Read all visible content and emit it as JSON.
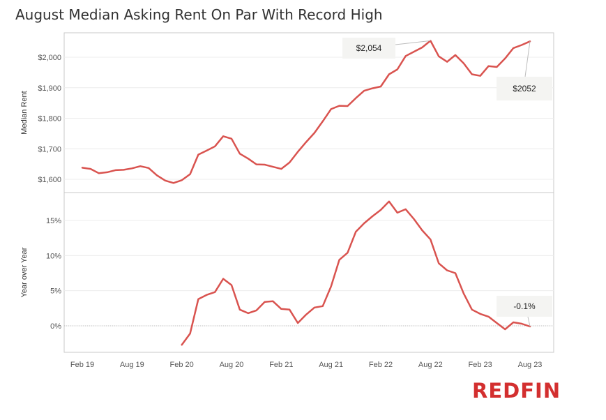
{
  "title": "August Median Asking Rent On Par With Record High",
  "logo": "Redfin",
  "colors": {
    "line": "#d9534f",
    "logo": "#d32f2f",
    "grid": "#ececec",
    "frame": "#c8c8c8",
    "annotation_bg": "#f4f4f2"
  },
  "chart_data": [
    {
      "type": "line",
      "ylabel": "Median Rent",
      "yticks": [
        1600,
        1700,
        1800,
        1900,
        2000
      ],
      "ytick_labels": [
        "$1,600",
        "$1,700",
        "$1,800",
        "$1,900",
        "$2,000"
      ],
      "ylim": [
        1570,
        2080
      ],
      "xticks": [
        "2019-02",
        "2019-08",
        "2020-02",
        "2020-08",
        "2021-02",
        "2021-08",
        "2022-02",
        "2022-08",
        "2023-02",
        "2023-08"
      ],
      "xtick_labels": [
        "Feb 19",
        "Aug 19",
        "Feb 20",
        "Aug 20",
        "Feb 21",
        "Aug 21",
        "Feb 22",
        "Aug 22",
        "Feb 23",
        "Aug 23"
      ],
      "series": [
        {
          "x": [
            "2019-02",
            "2019-03",
            "2019-04",
            "2019-05",
            "2019-06",
            "2019-07",
            "2019-08",
            "2019-09",
            "2019-10",
            "2019-11",
            "2019-12",
            "2020-01",
            "2020-02",
            "2020-03",
            "2020-04",
            "2020-05",
            "2020-06",
            "2020-07",
            "2020-08",
            "2020-09",
            "2020-10",
            "2020-11",
            "2020-12",
            "2021-01",
            "2021-02",
            "2021-03",
            "2021-04",
            "2021-05",
            "2021-06",
            "2021-07",
            "2021-08",
            "2021-09",
            "2021-10",
            "2021-11",
            "2021-12",
            "2022-01",
            "2022-02",
            "2022-03",
            "2022-04",
            "2022-05",
            "2022-06",
            "2022-07",
            "2022-08",
            "2022-09",
            "2022-10",
            "2022-11",
            "2022-12",
            "2023-01",
            "2023-02",
            "2023-03",
            "2023-04",
            "2023-05",
            "2023-06",
            "2023-07",
            "2023-08"
          ],
          "values": [
            1638,
            1634,
            1620,
            1623,
            1630,
            1631,
            1636,
            1643,
            1637,
            1613,
            1596,
            1588,
            1597,
            1617,
            1681,
            1694,
            1708,
            1741,
            1733,
            1684,
            1668,
            1649,
            1648,
            1641,
            1634,
            1655,
            1690,
            1722,
            1752,
            1790,
            1830,
            1841,
            1840,
            1866,
            1890,
            1898,
            1904,
            1944,
            1960,
            2004,
            2018,
            2032,
            2054,
            2003,
            1985,
            2007,
            1980,
            1944,
            1939,
            1971,
            1968,
            1996,
            2030,
            2040,
            2052
          ]
        }
      ],
      "annotations": [
        {
          "label": "$2,054",
          "x": "2022-08",
          "value": 2054
        },
        {
          "label": "$2052",
          "x": "2023-08",
          "value": 2052
        }
      ]
    },
    {
      "type": "line",
      "ylabel": "Year over Year",
      "yticks": [
        0,
        5,
        10,
        15
      ],
      "ytick_labels": [
        "0%",
        "5%",
        "10%",
        "15%"
      ],
      "ylim": [
        -4,
        20
      ],
      "baseline": 0,
      "series": [
        {
          "x": [
            "2020-02",
            "2020-03",
            "2020-04",
            "2020-05",
            "2020-06",
            "2020-07",
            "2020-08",
            "2020-09",
            "2020-10",
            "2020-11",
            "2020-12",
            "2021-01",
            "2021-02",
            "2021-03",
            "2021-04",
            "2021-05",
            "2021-06",
            "2021-07",
            "2021-08",
            "2021-09",
            "2021-10",
            "2021-11",
            "2021-12",
            "2022-01",
            "2022-02",
            "2022-03",
            "2022-04",
            "2022-05",
            "2022-06",
            "2022-07",
            "2022-08",
            "2022-09",
            "2022-10",
            "2022-11",
            "2022-12",
            "2023-01",
            "2023-02",
            "2023-03",
            "2023-04",
            "2023-05",
            "2023-06",
            "2023-07",
            "2023-08"
          ],
          "values": [
            -2.7,
            -1.1,
            3.8,
            4.4,
            4.8,
            6.7,
            5.8,
            2.3,
            1.8,
            2.2,
            3.4,
            3.5,
            2.4,
            2.3,
            0.4,
            1.6,
            2.6,
            2.8,
            5.6,
            9.4,
            10.4,
            13.4,
            14.6,
            15.6,
            16.5,
            17.7,
            16.1,
            16.6,
            15.2,
            13.6,
            12.3,
            8.9,
            7.9,
            7.5,
            4.6,
            2.3,
            1.7,
            1.3,
            0.4,
            -0.5,
            0.5,
            0.3,
            -0.1
          ]
        }
      ],
      "annotations": [
        {
          "label": "-0.1%",
          "x": "2023-08",
          "value": -0.1
        }
      ]
    }
  ]
}
